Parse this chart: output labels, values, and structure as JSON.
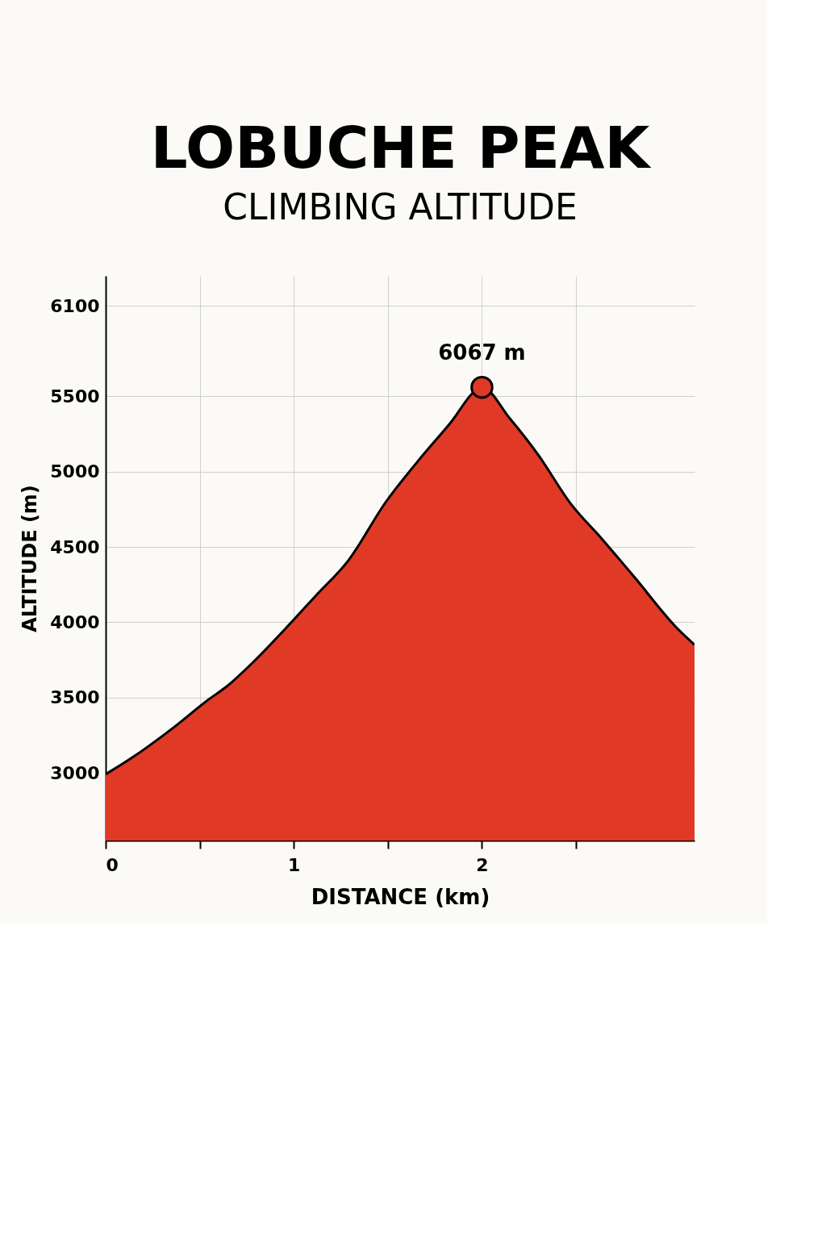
{
  "chart_data": {
    "type": "area",
    "title": "LOBUCHE PEAK",
    "subtitle": "CLIMBING ALTITUDE",
    "xlabel": "DISTANCE (km)",
    "ylabel": "ALTITUDE (m)",
    "xlim": [
      0,
      3.13
    ],
    "ylim": [
      2550,
      6300
    ],
    "xticks": [
      0,
      {
        "value": 0.5,
        "label": null
      },
      1,
      {
        "value": 1.5,
        "label": null
      },
      2,
      {
        "value": 2.5,
        "label": null
      }
    ],
    "yticks": [
      3000,
      3500,
      4000,
      4500,
      5000,
      5500,
      6100
    ],
    "grid": true,
    "series": [
      {
        "color": "#e03a26",
        "x": [
          0,
          0.14,
          0.35,
          0.54,
          0.65,
          0.78,
          0.95,
          1.12,
          1.29,
          1.49,
          1.66,
          1.83,
          1.98,
          2.0,
          2.15,
          2.3,
          2.47,
          2.64,
          2.81,
          3.03,
          3.13
        ],
        "values": [
          2990,
          3100,
          3290,
          3480,
          3580,
          3730,
          3950,
          4180,
          4410,
          4800,
          5070,
          5320,
          5550,
          5560,
          5350,
          5110,
          4790,
          4550,
          4300,
          3970,
          3850
        ]
      },
      {
        "type": "scatter",
        "color": "#e03a26",
        "marker": "circle",
        "x": [
          2.0
        ],
        "values": [
          5560
        ]
      }
    ],
    "annotations": [
      "6067 m"
    ]
  }
}
